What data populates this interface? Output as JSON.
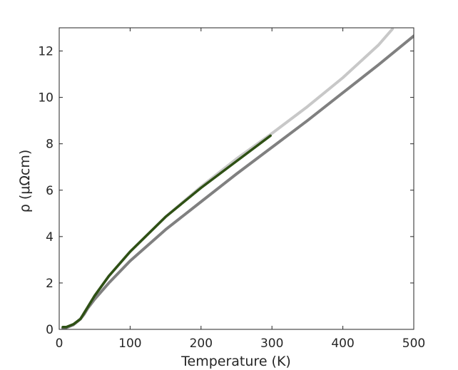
{
  "chart_data": {
    "type": "line",
    "title": "",
    "xlabel": "Temperature (K)",
    "ylabel": "ρ (μΩcm)",
    "xlim": [
      0,
      500
    ],
    "ylim": [
      0,
      13
    ],
    "xticks": [
      0,
      100,
      200,
      300,
      400,
      500
    ],
    "yticks": [
      0,
      2,
      4,
      6,
      8,
      10,
      12
    ],
    "grid": false,
    "legend": "none",
    "series": [
      {
        "color": "#c8c8c8",
        "line_width": 4,
        "x": [
          5,
          10,
          20,
          30,
          35,
          40,
          50,
          70,
          100,
          150,
          200,
          250,
          300,
          350,
          400,
          450,
          470
        ],
        "y": [
          0.05,
          0.07,
          0.2,
          0.45,
          0.7,
          0.95,
          1.45,
          2.3,
          3.35,
          4.85,
          6.15,
          7.35,
          8.45,
          9.6,
          10.85,
          12.25,
          12.95
        ]
      },
      {
        "color": "#808080",
        "line_width": 4,
        "x": [
          5,
          10,
          20,
          30,
          35,
          40,
          50,
          70,
          100,
          150,
          200,
          250,
          300,
          350,
          400,
          450,
          500
        ],
        "y": [
          0.05,
          0.07,
          0.2,
          0.45,
          0.65,
          0.9,
          1.3,
          2.0,
          2.95,
          4.3,
          5.5,
          6.7,
          7.85,
          9.0,
          10.2,
          11.4,
          12.65
        ]
      },
      {
        "color": "#2e5014",
        "line_width": 3.5,
        "x": [
          5,
          10,
          20,
          30,
          35,
          40,
          50,
          70,
          100,
          150,
          200,
          250,
          298
        ],
        "y": [
          0.1,
          0.1,
          0.22,
          0.45,
          0.7,
          0.95,
          1.45,
          2.3,
          3.35,
          4.85,
          6.1,
          7.25,
          8.35
        ]
      }
    ]
  }
}
